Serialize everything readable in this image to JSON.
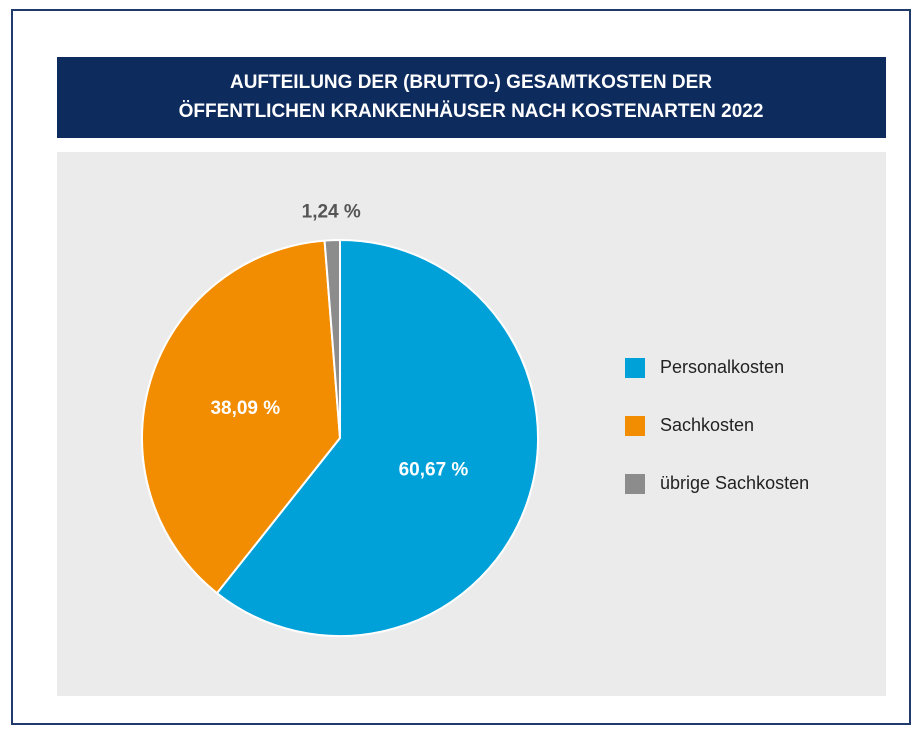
{
  "chart_data": {
    "type": "pie",
    "title": [
      "AUFTEILUNG DER (BRUTTO-) GESAMTKOSTEN DER",
      "ÖFFENTLICHEN KRANKENHÄUSER NACH KOSTENARTEN 2022"
    ],
    "categories": [
      "Personalkosten",
      "Sachkosten",
      "übrige Sachkosten"
    ],
    "values": [
      60.67,
      38.09,
      1.24
    ],
    "value_labels": [
      "60,67 %",
      "38,09 %",
      "1,24 %"
    ],
    "colors": [
      "#00a0d8",
      "#f28c00",
      "#8c8c8c"
    ],
    "legend": "right"
  }
}
